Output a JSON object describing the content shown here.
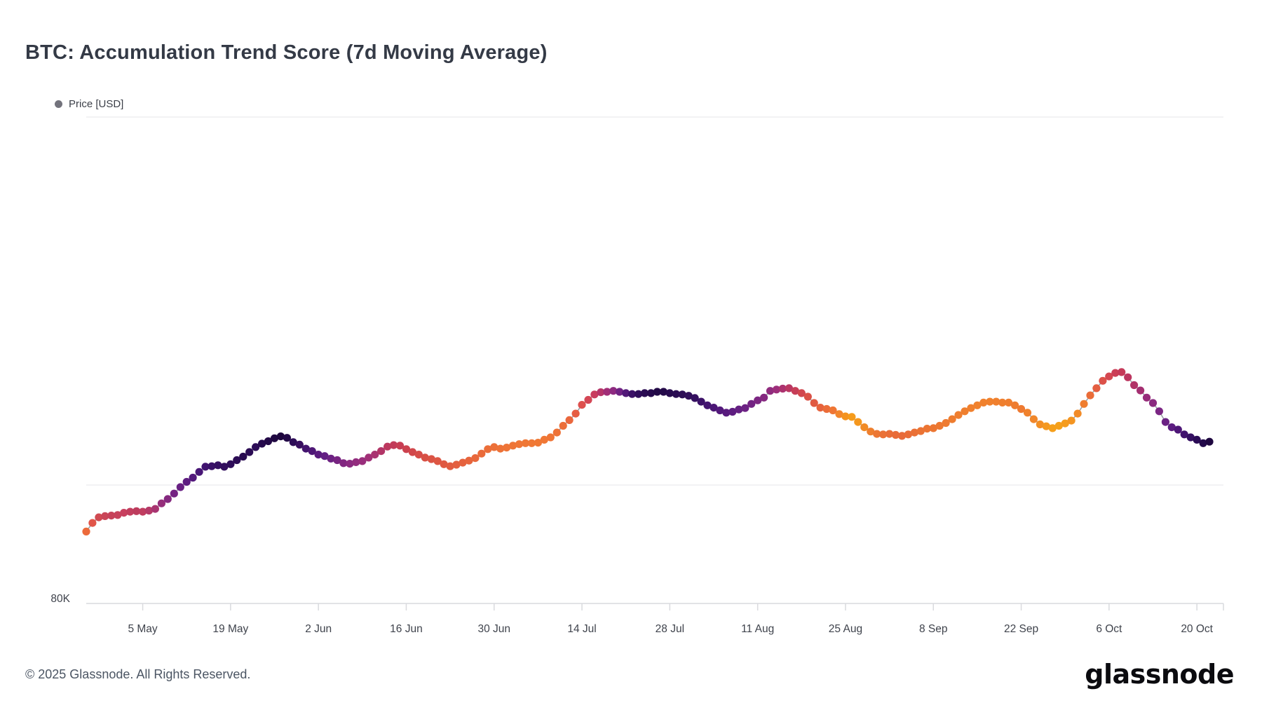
{
  "page": {
    "title": "BTC: Accumulation Trend Score (7d Moving Average)",
    "copyright": "© 2025 Glassnode. All Rights Reserved.",
    "brand": "glassnode"
  },
  "legend": {
    "label": "Price [USD]",
    "dot_color": "#73737c",
    "position": "top-left"
  },
  "chart_data": {
    "type": "scatter",
    "title": "BTC: Accumulation Trend Score (7d Moving Average)",
    "series_name": "Price [USD]",
    "x_start_date": "2025-04-26",
    "x_interval": "daily",
    "n_points": 180,
    "x_tick_labels": [
      "5 May",
      "19 May",
      "2 Jun",
      "16 Jun",
      "30 Jun",
      "14 Jul",
      "28 Jul",
      "11 Aug",
      "25 Aug",
      "8 Sep",
      "22 Sep",
      "6 Oct",
      "20 Oct"
    ],
    "x_tick_day_indices": [
      9,
      23,
      37,
      51,
      65,
      79,
      93,
      107,
      121,
      135,
      149,
      163,
      177
    ],
    "y_axis_scale": "log",
    "y_tick_labels": [
      "80K"
    ],
    "y_gridline_values_k": [
      100,
      200
    ],
    "y_axis_value_k": 80,
    "ylim_usd_thousands": [
      80,
      200
    ],
    "grid": "horizontal-only",
    "color_encoding": "accumulation trend score: dark purple = high accumulation (~1), orange/amber = low (~0)",
    "price_usd_thousands": [
      91.6,
      93.1,
      94.1,
      94.3,
      94.4,
      94.5,
      94.9,
      95.1,
      95.2,
      95.1,
      95.3,
      95.6,
      96.6,
      97.4,
      98.4,
      99.6,
      100.6,
      101.4,
      102.5,
      103.5,
      103.6,
      103.8,
      103.5,
      104.0,
      104.8,
      105.5,
      106.4,
      107.4,
      108.1,
      108.6,
      109.2,
      109.6,
      109.3,
      108.4,
      107.9,
      107.1,
      106.6,
      105.9,
      105.6,
      105.1,
      104.8,
      104.2,
      104.1,
      104.4,
      104.6,
      105.3,
      105.9,
      106.6,
      107.5,
      107.8,
      107.7,
      107.0,
      106.4,
      105.9,
      105.3,
      105.0,
      104.6,
      104.0,
      103.6,
      103.9,
      104.3,
      104.7,
      105.2,
      106.1,
      107.0,
      107.4,
      107.1,
      107.3,
      107.7,
      108.0,
      108.2,
      108.2,
      108.3,
      108.9,
      109.4,
      110.4,
      111.8,
      113.0,
      114.4,
      116.3,
      117.4,
      118.6,
      119.1,
      119.2,
      119.4,
      119.2,
      118.9,
      118.7,
      118.7,
      118.9,
      118.9,
      119.2,
      119.2,
      118.9,
      118.7,
      118.6,
      118.3,
      117.8,
      117.0,
      116.2,
      115.7,
      115.1,
      114.6,
      114.8,
      115.3,
      115.6,
      116.5,
      117.3,
      117.9,
      119.4,
      119.7,
      119.9,
      120.0,
      119.4,
      118.9,
      118.1,
      116.7,
      115.7,
      115.4,
      115.1,
      114.3,
      113.8,
      113.7,
      112.6,
      111.5,
      110.6,
      110.1,
      110.0,
      110.1,
      109.9,
      109.7,
      110.0,
      110.4,
      110.7,
      111.2,
      111.3,
      111.8,
      112.4,
      113.2,
      114.1,
      114.9,
      115.6,
      116.2,
      116.8,
      117.0,
      117.0,
      116.8,
      116.8,
      116.2,
      115.4,
      114.6,
      113.2,
      112.1,
      111.7,
      111.3,
      111.8,
      112.3,
      112.9,
      114.4,
      116.5,
      118.4,
      120.0,
      121.7,
      122.7,
      123.5,
      123.7,
      122.5,
      120.7,
      119.5,
      117.9,
      116.7,
      114.9,
      112.6,
      111.5,
      111.0,
      110.0,
      109.4,
      108.9,
      108.2,
      108.5
    ],
    "point_colors": [
      "#ec6a3b",
      "#e15549",
      "#d04a52",
      "#c94557",
      "#c6425a",
      "#c6425c",
      "#c8405f",
      "#c23e5e",
      "#bd3c5d",
      "#c03d60",
      "#b53a68",
      "#a83471",
      "#952e7b",
      "#85297f",
      "#742382",
      "#682083",
      "#5e1d81",
      "#53197c",
      "#481676",
      "#40136f",
      "#3a1168",
      "#350f62",
      "#320e5e",
      "#2f0d5a",
      "#2c0c55",
      "#290b51",
      "#2b0c54",
      "#2d0d57",
      "#260a4d",
      "#230947",
      "#200842",
      "#1e073e",
      "#230947",
      "#2d0d57",
      "#38105f",
      "#43146e",
      "#4e1776",
      "#591b7e",
      "#631f83",
      "#6d2283",
      "#772481",
      "#812680",
      "#8b2a80",
      "#922c7e",
      "#992e7c",
      "#a13077",
      "#a93371",
      "#b23567",
      "#bc385e",
      "#c23b59",
      "#c73e54",
      "#cc424f",
      "#d1474b",
      "#d54c48",
      "#d85045",
      "#db5344",
      "#dd5643",
      "#df5942",
      "#e15c41",
      "#e35f40",
      "#e5623e",
      "#e7653d",
      "#e8683c",
      "#ea6b3a",
      "#eb6e39",
      "#ec7038",
      "#ed7237",
      "#ee7437",
      "#ee7536",
      "#ef7636",
      "#ef7735",
      "#f07835",
      "#f07834",
      "#f07735",
      "#ef7536",
      "#ee7237",
      "#ec6e39",
      "#ea673d",
      "#e65d43",
      "#de504d",
      "#d44655",
      "#c93c5e",
      "#b63569",
      "#a12e77",
      "#8d2a80",
      "#6f2283",
      "#511878",
      "#3b1167",
      "#2f0d5a",
      "#2a0c52",
      "#260a4c",
      "#220946",
      "#240a49",
      "#270b4e",
      "#2a0c52",
      "#2d0d56",
      "#300e5a",
      "#351060",
      "#3c1268",
      "#431470",
      "#4b1675",
      "#53197b",
      "#581b7e",
      "#5e1d80",
      "#652082",
      "#6c2183",
      "#732383",
      "#7c2682",
      "#852880",
      "#902b7e",
      "#9d2e7b",
      "#ac326f",
      "#ba3762",
      "#c63e57",
      "#d1474e",
      "#da5146",
      "#e05a41",
      "#e6633d",
      "#eb6c39",
      "#ef7634",
      "#f2862c",
      "#f4921f",
      "#f59b1b",
      "#f4971e",
      "#f18b26",
      "#ee7f2e",
      "#ec7733",
      "#ea7136",
      "#e96e38",
      "#e86c39",
      "#e86b3a",
      "#e96d38",
      "#ea7036",
      "#eb7334",
      "#ec7533",
      "#ec7632",
      "#ed7831",
      "#ee7a30",
      "#ee7c2f",
      "#ef7e2f",
      "#ef7f2e",
      "#f0802e",
      "#f0812d",
      "#f0812d",
      "#f0812d",
      "#f0802e",
      "#ef7f2e",
      "#ef7e2f",
      "#ee7c30",
      "#ee7a31",
      "#f0812c",
      "#f1872a",
      "#f38f24",
      "#f49820",
      "#f59f1b",
      "#f5a01a",
      "#f59c1d",
      "#f49521",
      "#f28b27",
      "#ef7d2f",
      "#ea6c38",
      "#e45e41",
      "#dc5149",
      "#d44751",
      "#cb3e56",
      "#c53a59",
      "#bc3660",
      "#b13367",
      "#a42f71",
      "#972c7a",
      "#8a2a80",
      "#7b2684",
      "#6b2184",
      "#5c1d81",
      "#4e1777",
      "#41136e",
      "#351062",
      "#2b0c56",
      "#22094a",
      "#1e0740"
    ]
  }
}
